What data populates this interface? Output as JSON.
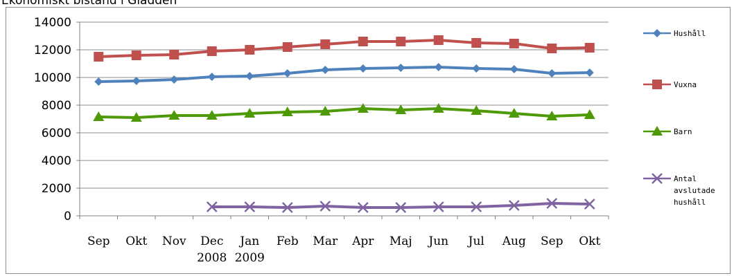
{
  "page": {
    "title": "Ekonomiskt bistånd i Gladden"
  },
  "chart_data": {
    "type": "line",
    "title": "",
    "xlabel": "",
    "ylabel": "",
    "categories": [
      "Sep",
      "Okt",
      "Nov",
      "Dec\n2008",
      "Jan\n2009",
      "Feb",
      "Mar",
      "Apr",
      "Maj",
      "Jun",
      "Jul",
      "Aug",
      "Sep",
      "Okt"
    ],
    "ylim": [
      0,
      14000
    ],
    "yticks": [
      0,
      2000,
      4000,
      6000,
      8000,
      10000,
      12000,
      14000
    ],
    "grid": true,
    "legend_position": "right",
    "series": [
      {
        "name": "Hushåll",
        "color": "#4f81bd",
        "marker": "diamond",
        "values": [
          9700,
          9750,
          9850,
          10050,
          10100,
          10300,
          10550,
          10650,
          10700,
          10750,
          10650,
          10600,
          10300,
          10350
        ]
      },
      {
        "name": "Vuxna",
        "color": "#c0504d",
        "marker": "square",
        "values": [
          11500,
          11600,
          11650,
          11900,
          12000,
          12200,
          12400,
          12600,
          12600,
          12700,
          12500,
          12450,
          12100,
          12150
        ]
      },
      {
        "name": "Barn",
        "color": "#4e9a06",
        "marker": "triangle",
        "values": [
          7150,
          7100,
          7250,
          7250,
          7400,
          7500,
          7550,
          7750,
          7650,
          7750,
          7600,
          7400,
          7200,
          7300
        ]
      },
      {
        "name": "Antal avslutade hushåll",
        "color": "#8064a2",
        "marker": "x",
        "values": [
          null,
          null,
          null,
          650,
          650,
          600,
          700,
          600,
          600,
          650,
          650,
          750,
          900,
          850
        ]
      }
    ]
  }
}
